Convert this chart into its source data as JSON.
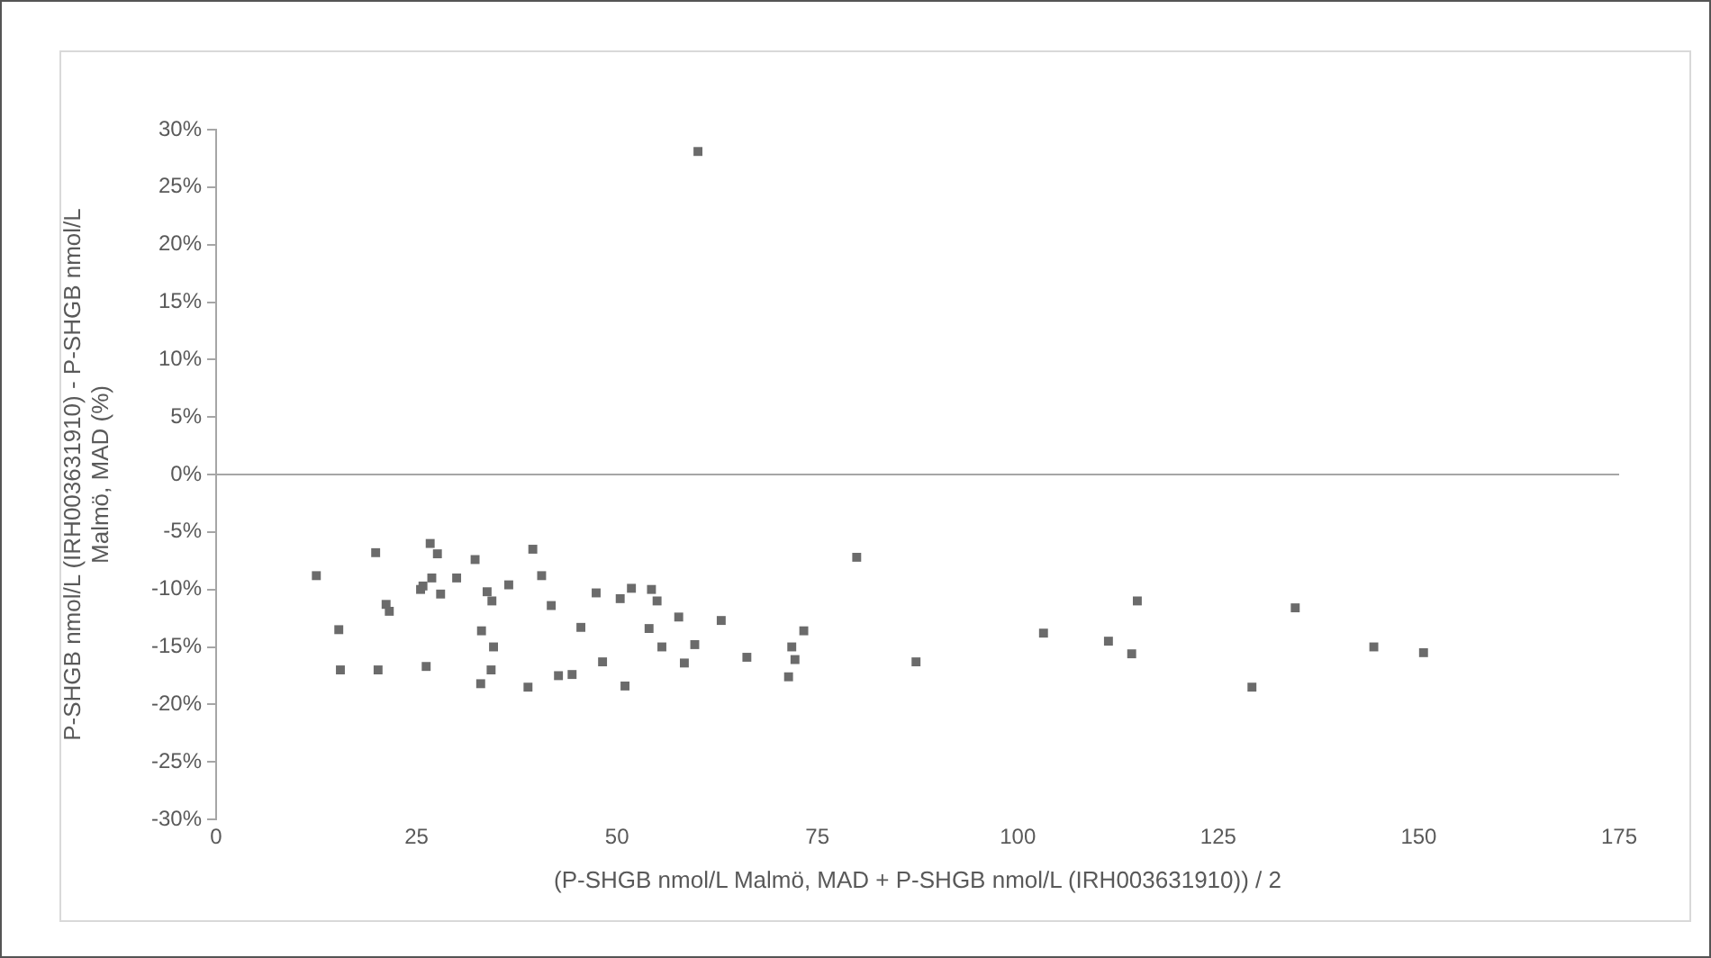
{
  "chart_data": {
    "type": "scatter",
    "xlabel": "(P-SHGB nmol/L Malmö, MAD + P-SHGB nmol/L (IRH003631910)) / 2",
    "ylabel": "P-SHGB nmol/L (IRH003631910) - P-SHGB nmol/L Malmö, MAD (%)",
    "x": [
      12.5,
      15.3,
      15.5,
      19.9,
      20.2,
      21.2,
      21.6,
      25.5,
      25.8,
      26.2,
      26.7,
      26.9,
      27.6,
      28.0,
      30.0,
      32.3,
      33.1,
      33.0,
      33.8,
      34.4,
      34.6,
      34.3,
      36.5,
      38.9,
      39.5,
      40.6,
      41.8,
      42.7,
      44.4,
      45.5,
      47.4,
      48.2,
      51.0,
      50.4,
      51.8,
      54.3,
      55.0,
      54.0,
      55.6,
      57.7,
      58.4,
      59.7,
      63.0,
      66.2,
      71.8,
      71.4,
      72.2,
      73.3,
      79.9,
      87.3,
      103.2,
      114.9,
      111.3,
      114.2,
      129.2,
      134.6,
      144.4,
      150.6,
      60.1
    ],
    "values": [
      -8.8,
      -13.5,
      -17.0,
      -6.8,
      -17.0,
      -11.3,
      -11.9,
      -10.0,
      -9.7,
      -16.7,
      -6.0,
      -9.0,
      -6.9,
      -10.4,
      -9.0,
      -7.4,
      -13.6,
      -18.2,
      -10.2,
      -11.0,
      -15.0,
      -17.0,
      -9.6,
      -18.5,
      -6.5,
      -8.8,
      -11.4,
      -17.5,
      -17.4,
      -13.3,
      -10.3,
      -16.3,
      -18.4,
      -10.8,
      -9.9,
      -10.0,
      -11.0,
      -13.4,
      -15.0,
      -12.4,
      -16.4,
      -14.8,
      -12.7,
      -15.9,
      -15.0,
      -17.6,
      -16.1,
      -13.6,
      -7.2,
      -16.3,
      -13.8,
      -11.0,
      -14.5,
      -15.6,
      -18.5,
      -11.6,
      -15.0,
      -15.5,
      28.1
    ],
    "color": "#6b6b6b",
    "marker": "square",
    "xlim": [
      0,
      175
    ],
    "xticks": [
      0,
      25,
      50,
      75,
      100,
      125,
      150,
      175
    ],
    "ylim": [
      -30,
      30
    ],
    "yticks": [
      {
        "value": -30,
        "label": "-30%"
      },
      {
        "value": -25,
        "label": "-25%"
      },
      {
        "value": -20,
        "label": "-20%"
      },
      {
        "value": -15,
        "label": "-15%"
      },
      {
        "value": -10,
        "label": "-10%"
      },
      {
        "value": -5,
        "label": "-5%"
      },
      {
        "value": 0,
        "label": "0%"
      },
      {
        "value": 5,
        "label": "5%"
      },
      {
        "value": 10,
        "label": "10%"
      },
      {
        "value": 15,
        "label": "15%"
      },
      {
        "value": 20,
        "label": "20%"
      },
      {
        "value": 25,
        "label": "25%"
      },
      {
        "value": 30,
        "label": "30%"
      }
    ],
    "ref_lines": [
      {
        "axis": "y",
        "value": 0,
        "color": "#a6a6a6"
      }
    ],
    "grid": false,
    "legend": false
  }
}
